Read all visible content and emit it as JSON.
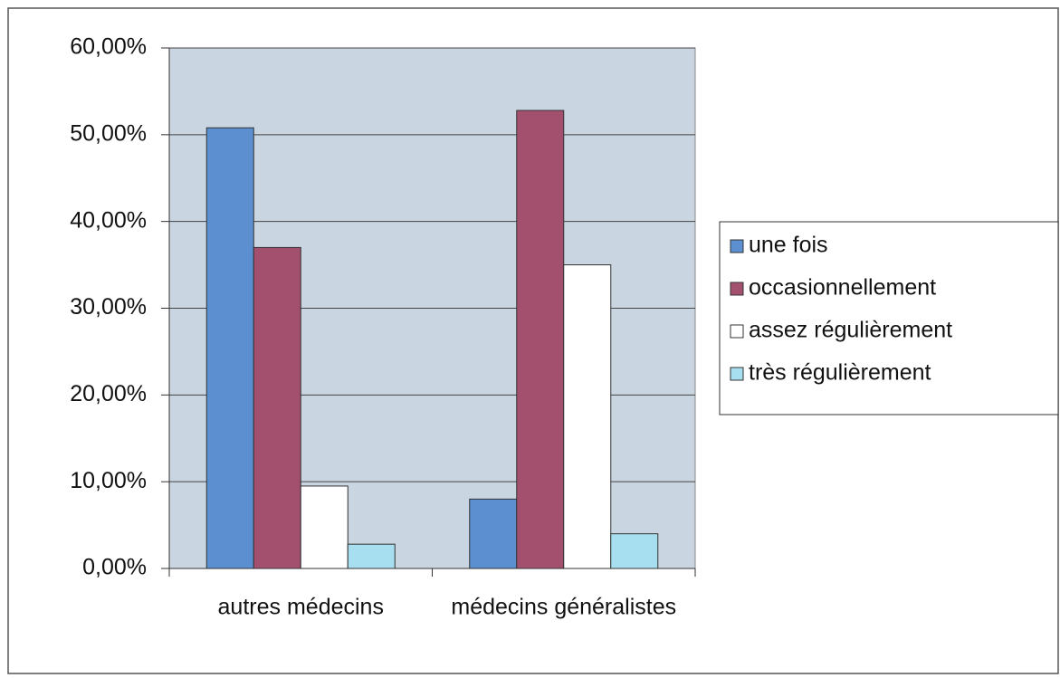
{
  "chart_data": {
    "type": "bar",
    "categories": [
      "autres médecins",
      "médecins généralistes"
    ],
    "series": [
      {
        "name": "une fois",
        "color": "#5b8fd0",
        "values": [
          50.8,
          8
        ]
      },
      {
        "name": "occasionnellement",
        "color": "#a3506f",
        "values": [
          37,
          52.8
        ]
      },
      {
        "name": "assez régulièrement",
        "color": "#ffffff",
        "values": [
          9.5,
          35
        ]
      },
      {
        "name": "très régulièrement",
        "color": "#a8dff0",
        "values": [
          2.8,
          4
        ]
      }
    ],
    "ylim": [
      0,
      60
    ],
    "yticks": [
      {
        "value": 0,
        "label": "0,00%"
      },
      {
        "value": 10,
        "label": "10,00%"
      },
      {
        "value": 20,
        "label": "20,00%"
      },
      {
        "value": 30,
        "label": "30,00%"
      },
      {
        "value": 40,
        "label": "40,00%"
      },
      {
        "value": 50,
        "label": "50,00%"
      },
      {
        "value": 60,
        "label": "60,00%"
      }
    ],
    "grid": true,
    "legend": "right"
  }
}
